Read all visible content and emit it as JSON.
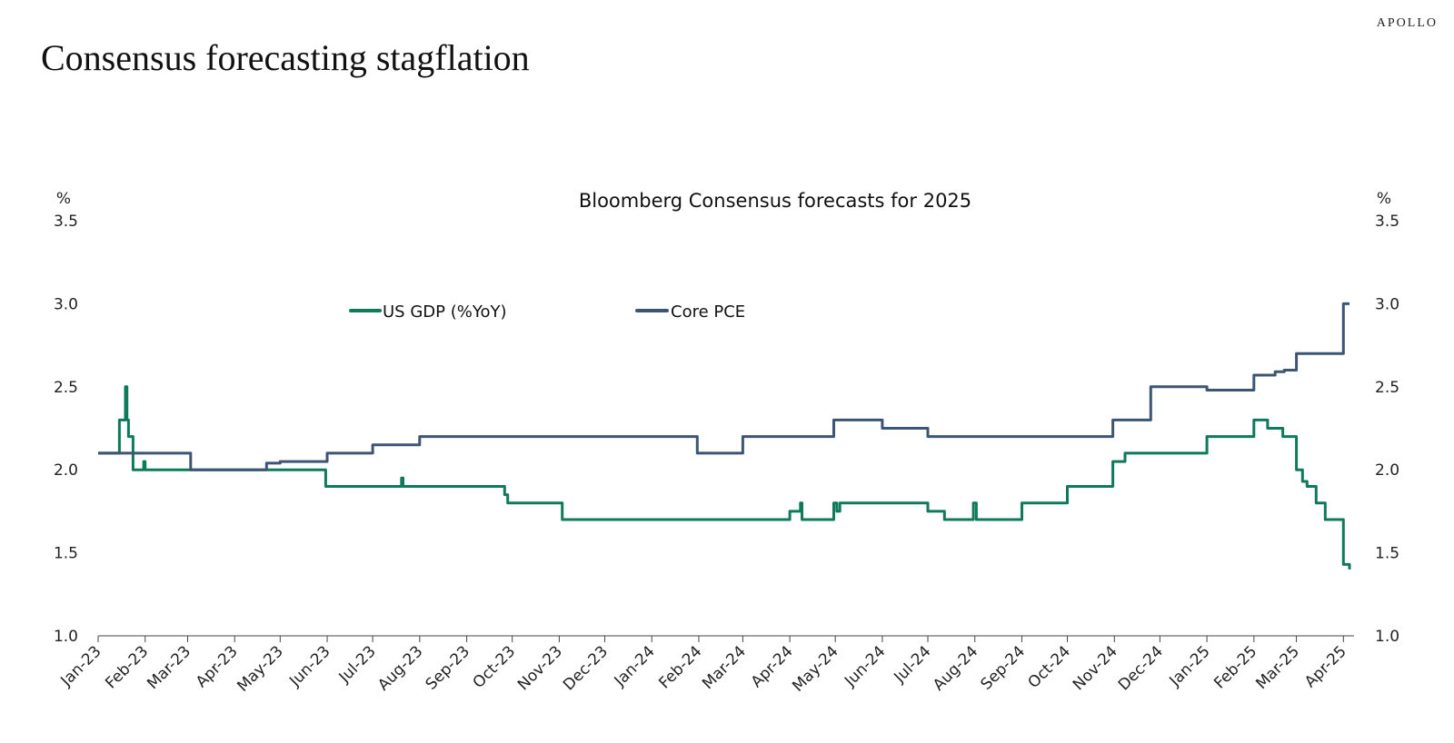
{
  "header": {
    "brand": "APOLLO",
    "title": "Consensus forecasting stagflation"
  },
  "chart_data": {
    "type": "line",
    "title": "Bloomberg Consensus forecasts for 2025",
    "y_unit_left": "%",
    "y_unit_right": "%",
    "ylim": [
      1.0,
      3.5
    ],
    "yticks": [
      "1.0",
      "1.5",
      "2.0",
      "2.5",
      "3.0",
      "3.5"
    ],
    "xlim": [
      "2023-01-01",
      "2025-04-08"
    ],
    "xticks": [
      {
        "label": "Jan-23",
        "date": "2023-01-01"
      },
      {
        "label": "Feb-23",
        "date": "2023-02-01"
      },
      {
        "label": "Mar-23",
        "date": "2023-03-01"
      },
      {
        "label": "Apr-23",
        "date": "2023-04-01"
      },
      {
        "label": "May-23",
        "date": "2023-05-01"
      },
      {
        "label": "Jun-23",
        "date": "2023-06-01"
      },
      {
        "label": "Jul-23",
        "date": "2023-07-01"
      },
      {
        "label": "Aug-23",
        "date": "2023-08-01"
      },
      {
        "label": "Sep-23",
        "date": "2023-09-01"
      },
      {
        "label": "Oct-23",
        "date": "2023-10-01"
      },
      {
        "label": "Nov-23",
        "date": "2023-11-01"
      },
      {
        "label": "Dec-23",
        "date": "2023-12-01"
      },
      {
        "label": "Jan-24",
        "date": "2024-01-01"
      },
      {
        "label": "Feb-24",
        "date": "2024-02-01"
      },
      {
        "label": "Mar-24",
        "date": "2024-03-01"
      },
      {
        "label": "Apr-24",
        "date": "2024-04-01"
      },
      {
        "label": "May-24",
        "date": "2024-05-01"
      },
      {
        "label": "Jun-24",
        "date": "2024-06-01"
      },
      {
        "label": "Jul-24",
        "date": "2024-07-01"
      },
      {
        "label": "Aug-24",
        "date": "2024-08-01"
      },
      {
        "label": "Sep-24",
        "date": "2024-09-01"
      },
      {
        "label": "Oct-24",
        "date": "2024-10-01"
      },
      {
        "label": "Nov-24",
        "date": "2024-11-01"
      },
      {
        "label": "Dec-24",
        "date": "2024-12-01"
      },
      {
        "label": "Jan-25",
        "date": "2025-01-01"
      },
      {
        "label": "Feb-25",
        "date": "2025-02-01"
      },
      {
        "label": "Mar-25",
        "date": "2025-03-01"
      },
      {
        "label": "Apr-25",
        "date": "2025-04-01"
      }
    ],
    "legend_position": "top-center",
    "grid": false,
    "series": [
      {
        "name": "US GDP (%YoY)",
        "color": "#0f7a5a",
        "step": true,
        "points": [
          [
            "2023-01-01",
            2.1
          ],
          [
            "2023-01-15",
            2.3
          ],
          [
            "2023-01-19",
            2.5
          ],
          [
            "2023-01-20",
            2.3
          ],
          [
            "2023-01-21",
            2.2
          ],
          [
            "2023-01-24",
            2.0
          ],
          [
            "2023-01-31",
            2.05
          ],
          [
            "2023-02-01",
            2.0
          ],
          [
            "2023-05-31",
            1.9
          ],
          [
            "2023-07-20",
            1.95
          ],
          [
            "2023-07-21",
            1.9
          ],
          [
            "2023-09-26",
            1.85
          ],
          [
            "2023-09-28",
            1.8
          ],
          [
            "2023-11-03",
            1.7
          ],
          [
            "2024-04-01",
            1.75
          ],
          [
            "2024-04-08",
            1.8
          ],
          [
            "2024-04-09",
            1.7
          ],
          [
            "2024-04-30",
            1.8
          ],
          [
            "2024-05-02",
            1.75
          ],
          [
            "2024-05-04",
            1.8
          ],
          [
            "2024-07-01",
            1.75
          ],
          [
            "2024-07-12",
            1.7
          ],
          [
            "2024-07-31",
            1.8
          ],
          [
            "2024-08-02",
            1.7
          ],
          [
            "2024-09-01",
            1.8
          ],
          [
            "2024-10-01",
            1.9
          ],
          [
            "2024-10-31",
            2.05
          ],
          [
            "2024-11-08",
            2.1
          ],
          [
            "2025-01-01",
            2.2
          ],
          [
            "2025-02-01",
            2.3
          ],
          [
            "2025-02-10",
            2.25
          ],
          [
            "2025-02-20",
            2.2
          ],
          [
            "2025-03-01",
            2.0
          ],
          [
            "2025-03-05",
            1.93
          ],
          [
            "2025-03-08",
            1.9
          ],
          [
            "2025-03-14",
            1.8
          ],
          [
            "2025-03-20",
            1.7
          ],
          [
            "2025-04-01",
            1.43
          ],
          [
            "2025-04-05",
            1.4
          ]
        ]
      },
      {
        "name": "Core PCE",
        "color": "#3d5575",
        "step": true,
        "points": [
          [
            "2023-01-01",
            2.1
          ],
          [
            "2023-02-01",
            2.1
          ],
          [
            "2023-03-03",
            2.0
          ],
          [
            "2023-04-22",
            2.04
          ],
          [
            "2023-05-01",
            2.05
          ],
          [
            "2023-06-01",
            2.1
          ],
          [
            "2023-07-01",
            2.15
          ],
          [
            "2023-08-01",
            2.2
          ],
          [
            "2024-01-31",
            2.1
          ],
          [
            "2024-03-01",
            2.2
          ],
          [
            "2024-04-30",
            2.3
          ],
          [
            "2024-06-01",
            2.25
          ],
          [
            "2024-07-01",
            2.2
          ],
          [
            "2024-10-31",
            2.3
          ],
          [
            "2024-11-25",
            2.5
          ],
          [
            "2025-01-01",
            2.48
          ],
          [
            "2025-02-01",
            2.57
          ],
          [
            "2025-02-15",
            2.59
          ],
          [
            "2025-02-21",
            2.6
          ],
          [
            "2025-03-01",
            2.7
          ],
          [
            "2025-04-01",
            3.0
          ],
          [
            "2025-04-05",
            3.0
          ]
        ]
      }
    ]
  }
}
